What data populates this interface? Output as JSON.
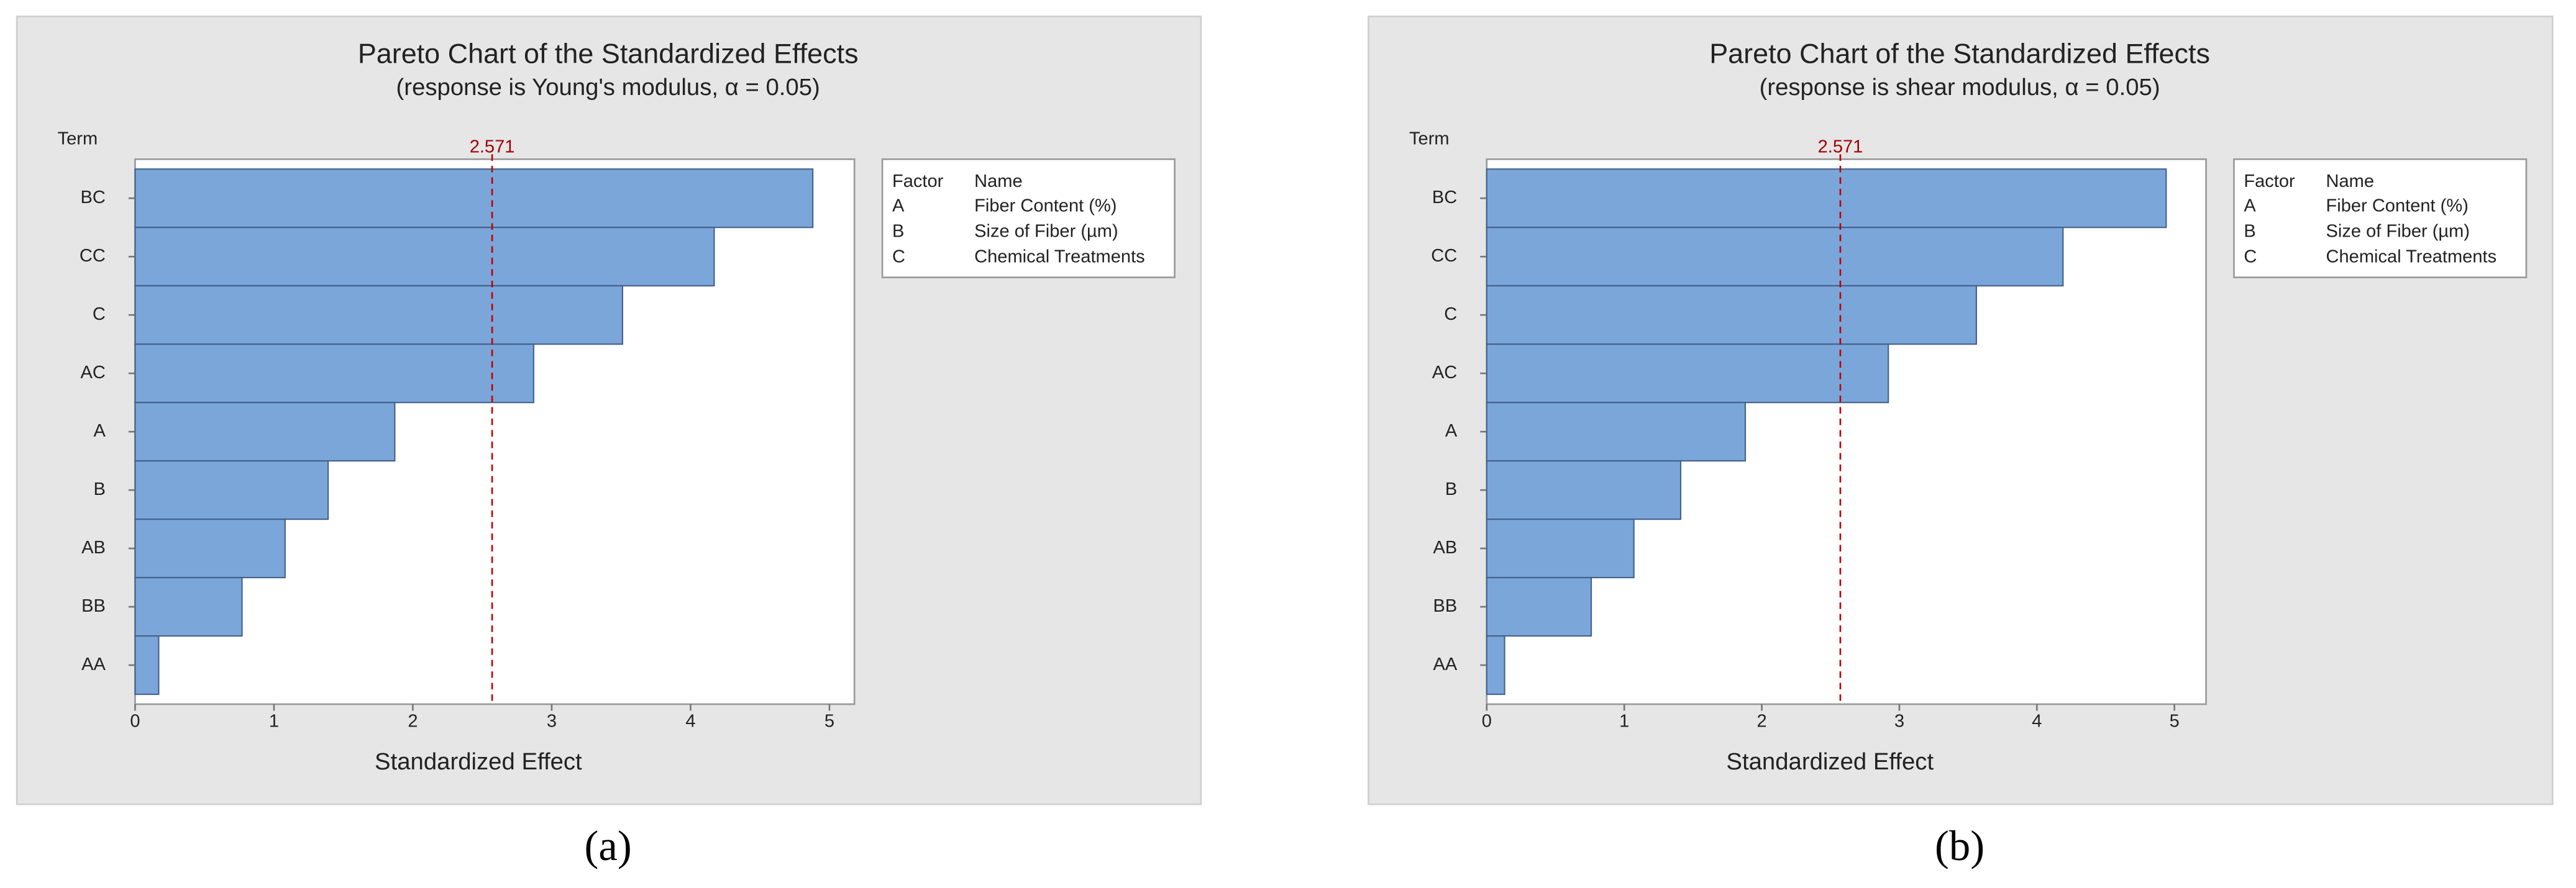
{
  "chart_data": [
    {
      "type": "hbar",
      "title": "Pareto Chart of the Standardized Effects",
      "subtitle": "(response is Young's modulus, α = 0.05)",
      "y_label": "Term",
      "x_label": "Standardized Effect",
      "categories": [
        "BC",
        "CC",
        "C",
        "AC",
        "A",
        "B",
        "AB",
        "BB",
        "AA"
      ],
      "values": [
        4.88,
        4.17,
        3.51,
        2.87,
        1.87,
        1.39,
        1.08,
        0.77,
        0.17
      ],
      "color": "#7ba6da",
      "reference_line": 2.571,
      "xlim": [
        0,
        5.18
      ],
      "xticks": [
        0,
        1,
        2,
        3,
        4,
        5
      ],
      "legend_table": {
        "headers": [
          "Factor",
          "Name"
        ],
        "rows": [
          [
            "A",
            "Fiber Content (%)"
          ],
          [
            "B",
            "Size of Fiber (µm)"
          ],
          [
            "C",
            "Chemical Treatments"
          ]
        ]
      },
      "caption": "(a)"
    },
    {
      "type": "hbar",
      "title": "Pareto Chart of the Standardized Effects",
      "subtitle": "(response is shear modulus, α = 0.05)",
      "y_label": "Term",
      "x_label": "Standardized Effect",
      "categories": [
        "BC",
        "CC",
        "C",
        "AC",
        "A",
        "B",
        "AB",
        "BB",
        "AA"
      ],
      "values": [
        4.94,
        4.19,
        3.56,
        2.92,
        1.88,
        1.41,
        1.07,
        0.76,
        0.13
      ],
      "color": "#7ba6da",
      "reference_line": 2.571,
      "xlim": [
        0,
        5.23
      ],
      "xticks": [
        0,
        1,
        2,
        3,
        4,
        5
      ],
      "legend_table": {
        "headers": [
          "Factor",
          "Name"
        ],
        "rows": [
          [
            "A",
            "Fiber Content (%)"
          ],
          [
            "B",
            "Size of Fiber (µm)"
          ],
          [
            "C",
            "Chemical Treatments"
          ]
        ]
      },
      "caption": "(b)"
    }
  ]
}
